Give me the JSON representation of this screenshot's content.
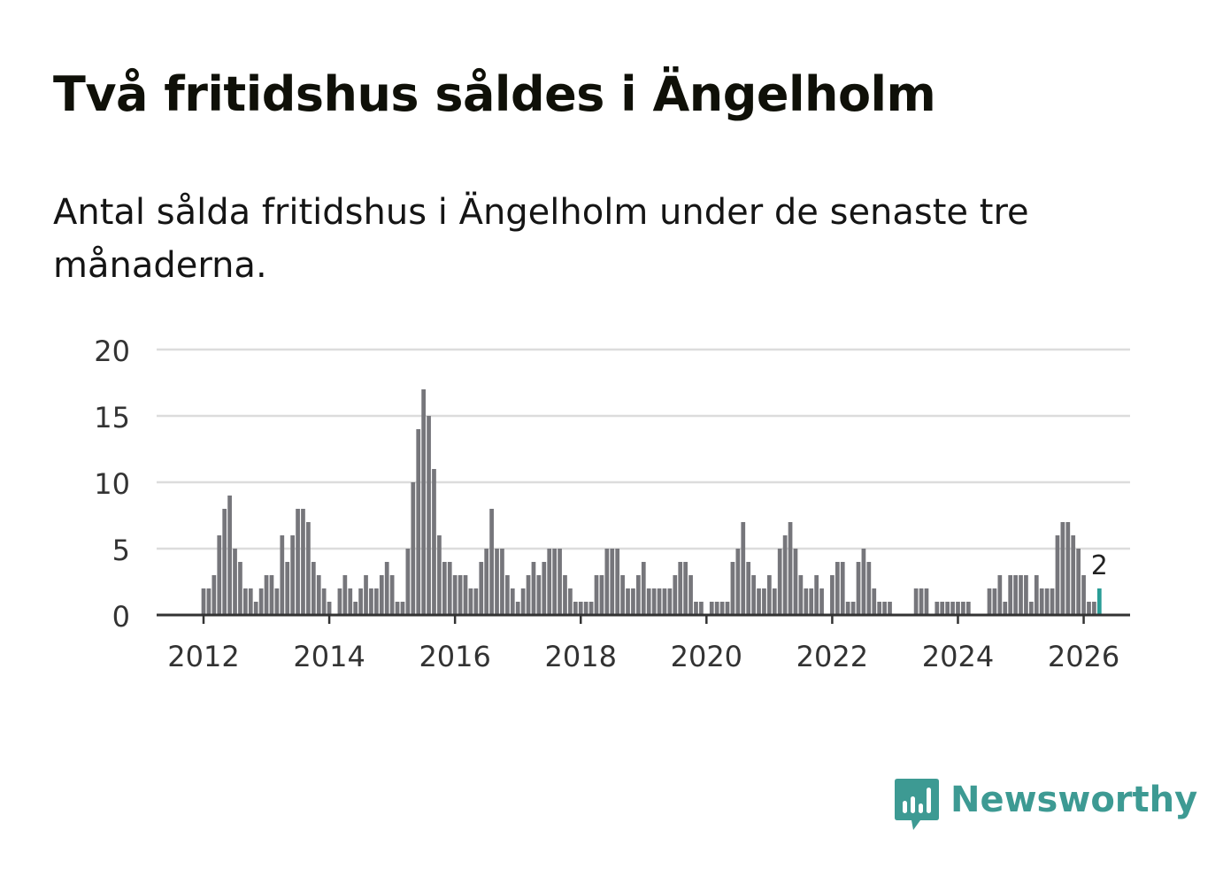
{
  "title": "Två fritidshus såldes i Ängelholm",
  "subtitle": "Antal sålda fritidshus i Ängelholm under de senaste tre månaderna.",
  "brand": {
    "name": "Newsworthy",
    "color": "#3d9a93",
    "icon": "newsworthy-chart-bubble-icon"
  },
  "colors": {
    "bar": "#76767b",
    "highlight": "#2a9d96",
    "grid": "#dcdcdc",
    "axis": "#333333",
    "text": "#333333"
  },
  "chart_data": {
    "type": "bar",
    "title": "",
    "xlabel": "",
    "ylabel": "",
    "ylim": [
      0,
      20
    ],
    "yticks": [
      "0",
      "5",
      "10",
      "15",
      "20"
    ],
    "xticks": [
      "2012",
      "2014",
      "2016",
      "2018",
      "2020",
      "2022",
      "2024",
      "2026"
    ],
    "x_start": "2012-01",
    "x_end": "2026-01",
    "grid": true,
    "legend": "none",
    "highlight_label": "2",
    "values": [
      2,
      2,
      3,
      6,
      8,
      9,
      5,
      4,
      2,
      2,
      1,
      2,
      3,
      3,
      2,
      6,
      4,
      6,
      8,
      8,
      7,
      4,
      3,
      2,
      1,
      0,
      2,
      3,
      2,
      1,
      2,
      3,
      2,
      2,
      3,
      4,
      3,
      1,
      1,
      5,
      10,
      14,
      17,
      15,
      11,
      6,
      4,
      4,
      3,
      3,
      3,
      2,
      2,
      4,
      5,
      8,
      5,
      5,
      3,
      2,
      1,
      2,
      3,
      4,
      3,
      4,
      5,
      5,
      5,
      3,
      2,
      1,
      1,
      1,
      1,
      3,
      3,
      5,
      5,
      5,
      3,
      2,
      2,
      3,
      4,
      2,
      2,
      2,
      2,
      2,
      3,
      4,
      4,
      3,
      1,
      1,
      0,
      1,
      1,
      1,
      1,
      4,
      5,
      7,
      4,
      3,
      2,
      2,
      3,
      2,
      5,
      6,
      7,
      5,
      3,
      2,
      2,
      3,
      2,
      0,
      3,
      4,
      4,
      1,
      1,
      4,
      5,
      4,
      2,
      1,
      1,
      1,
      0,
      0,
      0,
      0,
      2,
      2,
      2,
      0,
      1,
      1,
      1,
      1,
      1,
      1,
      1,
      0,
      0,
      0,
      2,
      2,
      3,
      1,
      3,
      3,
      3,
      3,
      1,
      3,
      2,
      2,
      2,
      6,
      7,
      7,
      6,
      5,
      3,
      1,
      1,
      2
    ]
  }
}
